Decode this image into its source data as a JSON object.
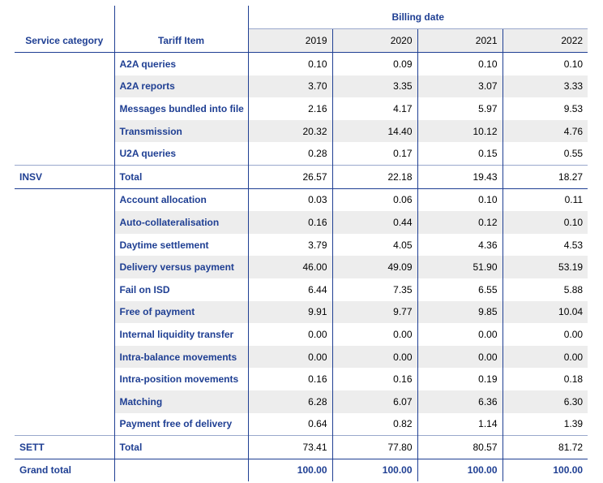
{
  "header": {
    "billing_date_label": "Billing date",
    "service_category_label": "Service category",
    "tariff_item_label": "Tariff Item",
    "years": [
      "2019",
      "2020",
      "2021",
      "2022"
    ]
  },
  "groups": [
    {
      "category": "INSV",
      "items": [
        {
          "label": "A2A queries",
          "values": [
            "0.10",
            "0.09",
            "0.10",
            "0.10"
          ]
        },
        {
          "label": "A2A reports",
          "values": [
            "3.70",
            "3.35",
            "3.07",
            "3.33"
          ]
        },
        {
          "label": "Messages bundled into file",
          "values": [
            "2.16",
            "4.17",
            "5.97",
            "9.53"
          ]
        },
        {
          "label": "Transmission",
          "values": [
            "20.32",
            "14.40",
            "10.12",
            "4.76"
          ]
        },
        {
          "label": "U2A queries",
          "values": [
            "0.28",
            "0.17",
            "0.15",
            "0.55"
          ]
        }
      ],
      "total": {
        "label": "Total",
        "values": [
          "26.57",
          "22.18",
          "19.43",
          "18.27"
        ]
      }
    },
    {
      "category": "SETT",
      "items": [
        {
          "label": "Account allocation",
          "values": [
            "0.03",
            "0.06",
            "0.10",
            "0.11"
          ]
        },
        {
          "label": "Auto-collateralisation",
          "values": [
            "0.16",
            "0.44",
            "0.12",
            "0.10"
          ]
        },
        {
          "label": "Daytime settlement",
          "values": [
            "3.79",
            "4.05",
            "4.36",
            "4.53"
          ]
        },
        {
          "label": "Delivery versus payment",
          "values": [
            "46.00",
            "49.09",
            "51.90",
            "53.19"
          ]
        },
        {
          "label": "Fail on ISD",
          "values": [
            "6.44",
            "7.35",
            "6.55",
            "5.88"
          ]
        },
        {
          "label": "Free of payment",
          "values": [
            "9.91",
            "9.77",
            "9.85",
            "10.04"
          ]
        },
        {
          "label": "Internal liquidity transfer",
          "values": [
            "0.00",
            "0.00",
            "0.00",
            "0.00"
          ]
        },
        {
          "label": "Intra-balance movements",
          "values": [
            "0.00",
            "0.00",
            "0.00",
            "0.00"
          ]
        },
        {
          "label": "Intra-position movements",
          "values": [
            "0.16",
            "0.16",
            "0.19",
            "0.18"
          ]
        },
        {
          "label": "Matching",
          "values": [
            "6.28",
            "6.07",
            "6.36",
            "6.30"
          ]
        },
        {
          "label": "Payment free of delivery",
          "values": [
            "0.64",
            "0.82",
            "1.14",
            "1.39"
          ]
        }
      ],
      "total": {
        "label": "Total",
        "values": [
          "73.41",
          "77.80",
          "80.57",
          "81.72"
        ]
      }
    }
  ],
  "grand_total": {
    "label": "Grand total",
    "values": [
      "100.00",
      "100.00",
      "100.00",
      "100.00"
    ]
  },
  "colors": {
    "accent": "#1f3f93",
    "shade": "#ededed"
  }
}
